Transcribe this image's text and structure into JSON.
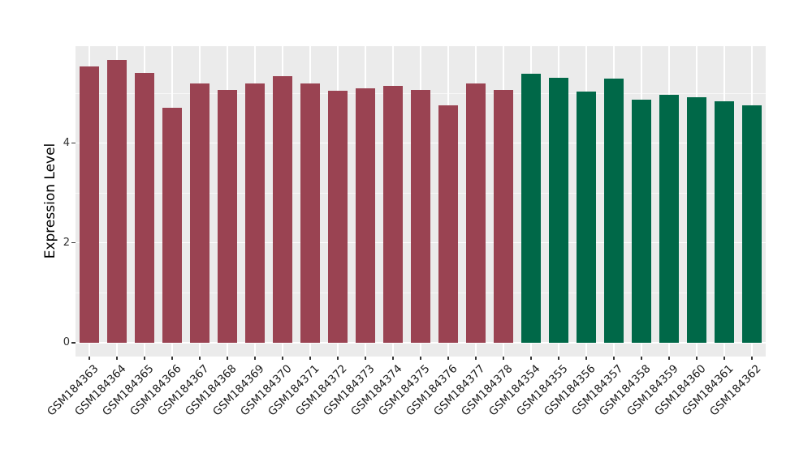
{
  "chart_data": {
    "type": "bar",
    "title": "",
    "xlabel": "",
    "ylabel": "Expression Level",
    "yticks": [
      0,
      2,
      4
    ],
    "minor_gridlines": [
      1,
      3,
      5
    ],
    "ylim": [
      -0.26,
      5.94
    ],
    "grid": "on",
    "legend": "none",
    "panel_bg": "#EBEBEB",
    "gridline_color": "#FFFFFF",
    "group_colors": {
      "groupA": "#9A4352",
      "groupB": "#006848"
    },
    "categories": [
      "GSM184363",
      "GSM184364",
      "GSM184365",
      "GSM184366",
      "GSM184367",
      "GSM184368",
      "GSM184369",
      "GSM184370",
      "GSM184371",
      "GSM184372",
      "GSM184373",
      "GSM184374",
      "GSM184375",
      "GSM184376",
      "GSM184377",
      "GSM184378",
      "GSM184354",
      "GSM184355",
      "GSM184356",
      "GSM184357",
      "GSM184358",
      "GSM184359",
      "GSM184360",
      "GSM184361",
      "GSM184362"
    ],
    "bars": [
      {
        "label": "GSM184363",
        "value": 5.54,
        "group": "groupA"
      },
      {
        "label": "GSM184364",
        "value": 5.67,
        "group": "groupA"
      },
      {
        "label": "GSM184365",
        "value": 5.41,
        "group": "groupA"
      },
      {
        "label": "GSM184366",
        "value": 4.71,
        "group": "groupA"
      },
      {
        "label": "GSM184367",
        "value": 5.19,
        "group": "groupA"
      },
      {
        "label": "GSM184368",
        "value": 5.07,
        "group": "groupA"
      },
      {
        "label": "GSM184369",
        "value": 5.19,
        "group": "groupA"
      },
      {
        "label": "GSM184370",
        "value": 5.34,
        "group": "groupA"
      },
      {
        "label": "GSM184371",
        "value": 5.19,
        "group": "groupA"
      },
      {
        "label": "GSM184372",
        "value": 5.05,
        "group": "groupA"
      },
      {
        "label": "GSM184373",
        "value": 5.1,
        "group": "groupA"
      },
      {
        "label": "GSM184374",
        "value": 5.15,
        "group": "groupA"
      },
      {
        "label": "GSM184375",
        "value": 5.07,
        "group": "groupA"
      },
      {
        "label": "GSM184376",
        "value": 4.76,
        "group": "groupA"
      },
      {
        "label": "GSM184377",
        "value": 5.2,
        "group": "groupA"
      },
      {
        "label": "GSM184378",
        "value": 5.06,
        "group": "groupA"
      },
      {
        "label": "GSM184354",
        "value": 5.39,
        "group": "groupB"
      },
      {
        "label": "GSM184355",
        "value": 5.31,
        "group": "groupB"
      },
      {
        "label": "GSM184356",
        "value": 5.04,
        "group": "groupB"
      },
      {
        "label": "GSM184357",
        "value": 5.29,
        "group": "groupB"
      },
      {
        "label": "GSM184358",
        "value": 4.87,
        "group": "groupB"
      },
      {
        "label": "GSM184359",
        "value": 4.97,
        "group": "groupB"
      },
      {
        "label": "GSM184360",
        "value": 4.92,
        "group": "groupB"
      },
      {
        "label": "GSM184361",
        "value": 4.84,
        "group": "groupB"
      },
      {
        "label": "GSM184362",
        "value": 4.75,
        "group": "groupB"
      }
    ]
  }
}
